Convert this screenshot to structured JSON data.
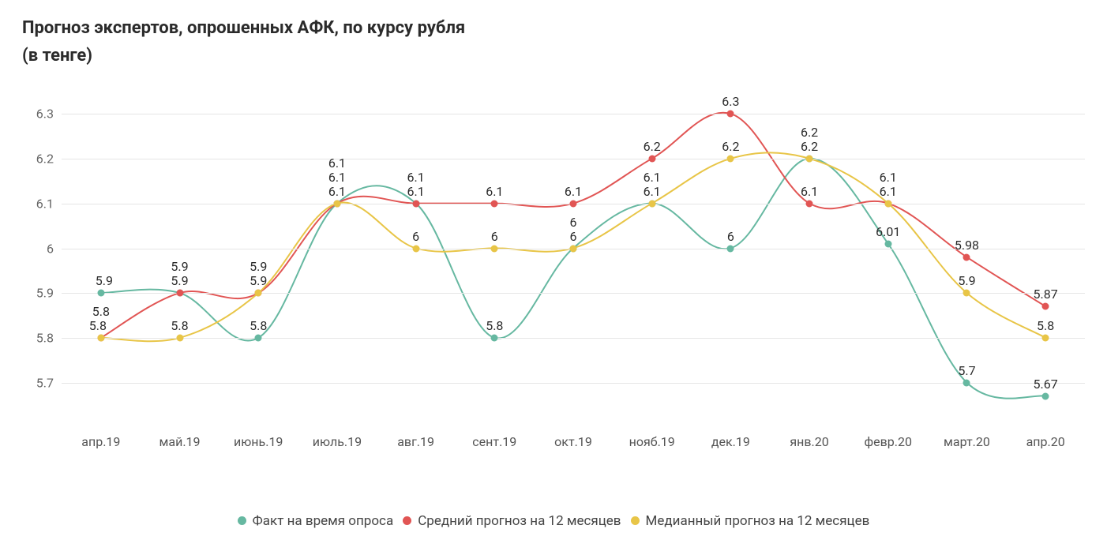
{
  "title_line1": "Прогноз экспертов, опрошенных АФК, по курсу рубля",
  "title_line2": "(в тенге)",
  "chart": {
    "type": "line",
    "background_color": "#ffffff",
    "grid_color": "#e6e6e6",
    "axis_font_color": "#666666",
    "axis_fontsize": 16,
    "title_fontsize": 22,
    "label_fontsize": 16,
    "line_width": 2,
    "marker_radius": 4.5,
    "curve_tension": 0.35,
    "ylim": [
      5.62,
      6.36
    ],
    "yticks": [
      5.7,
      5.8,
      5.9,
      6.0,
      6.1,
      6.2,
      6.3
    ],
    "ytick_labels": [
      "5.7",
      "5.8",
      "5.9",
      "6",
      "6.1",
      "6.2",
      "6.3"
    ],
    "x_labels": [
      "апр.19",
      "май.19",
      "июнь.19",
      "июль.19",
      "авг.19",
      "сент.19",
      "окт.19",
      "нояб.19",
      "дек.19",
      "янв.20",
      "февр.20",
      "март.20",
      "апр.20"
    ],
    "series": [
      {
        "name": "Факт на время опроса",
        "color": "#66b8a1",
        "values": [
          5.9,
          5.9,
          5.8,
          6.1,
          6.1,
          5.8,
          6.0,
          6.1,
          6.0,
          6.2,
          6.01,
          5.7,
          5.67
        ],
        "labels": [
          "5.9",
          "5.9",
          "5.8",
          "6.1",
          "6.1",
          "5.8",
          "6",
          "6.1",
          "6",
          "6.2",
          "6.01",
          "5.7",
          "5.67"
        ]
      },
      {
        "name": "Средний прогноз на 12 месяцев",
        "color": "#e15554",
        "values": [
          5.8,
          5.9,
          5.9,
          6.1,
          6.1,
          6.1,
          6.1,
          6.2,
          6.3,
          6.1,
          6.1,
          5.98,
          5.87
        ],
        "labels": [
          "5.8",
          "5.9",
          "5.9",
          "6.1",
          "6.1",
          "6.1",
          "6.1",
          "6.2",
          "6.3",
          "6.1",
          "6.1",
          "5.98",
          "5.87"
        ]
      },
      {
        "name": "Медианный прогноз на 12 месяцев",
        "color": "#e8c547",
        "values": [
          5.8,
          5.8,
          5.9,
          6.1,
          6.0,
          6.0,
          6.0,
          6.1,
          6.2,
          6.2,
          6.1,
          5.9,
          5.8
        ],
        "labels": [
          "5.8",
          "5.8",
          "5.9",
          "6.1",
          "6",
          "6",
          "6",
          "6.1",
          "6.2",
          "6.2",
          "6.1",
          "5.9",
          "5.8"
        ]
      }
    ],
    "label_offsets": {
      "0": {
        "0": 4
      },
      "1": {
        "0": -4
      }
    }
  }
}
